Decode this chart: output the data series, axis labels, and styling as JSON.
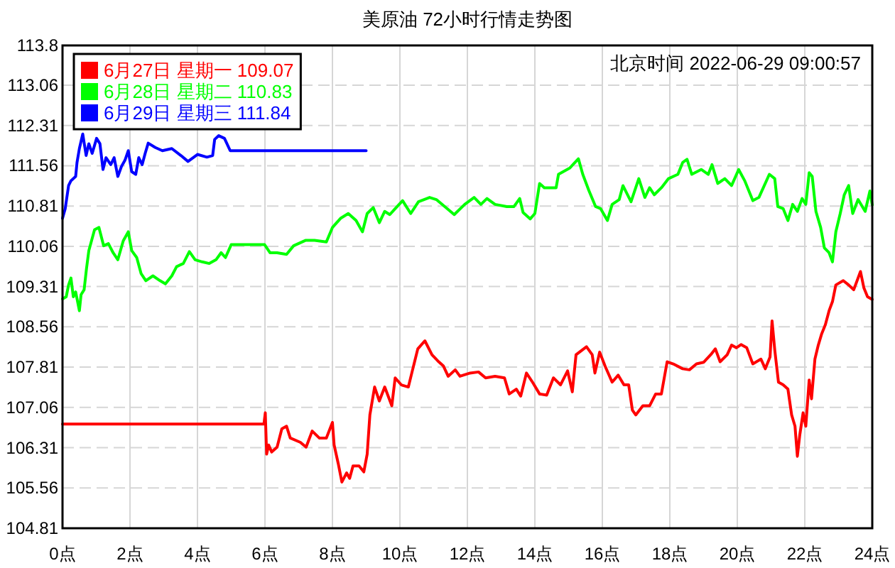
{
  "chart_data": {
    "type": "line",
    "title": "美原油 72小时行情走势图",
    "annotations": [
      "北京时间 2022-06-29 09:00:57"
    ],
    "xlim": [
      0,
      24
    ],
    "xticks": [
      {
        "value": 0,
        "label": "0点"
      },
      {
        "value": 2,
        "label": "2点"
      },
      {
        "value": 4,
        "label": "4点"
      },
      {
        "value": 6,
        "label": "6点"
      },
      {
        "value": 8,
        "label": "8点"
      },
      {
        "value": 10,
        "label": "10点"
      },
      {
        "value": 12,
        "label": "12点"
      },
      {
        "value": 14,
        "label": "14点"
      },
      {
        "value": 16,
        "label": "16点"
      },
      {
        "value": 18,
        "label": "18点"
      },
      {
        "value": 20,
        "label": "20点"
      },
      {
        "value": 22,
        "label": "22点"
      },
      {
        "value": 24,
        "label": "24点"
      }
    ],
    "ylim": [
      104.81,
      113.8
    ],
    "yticks": [
      104.81,
      105.56,
      106.31,
      107.06,
      107.81,
      108.56,
      109.31,
      110.06,
      110.81,
      111.56,
      112.31,
      113.06,
      113.8
    ],
    "grid": true,
    "legend": "top left",
    "line_style": "solid",
    "series": [
      {
        "name": "6月27日 星期一 109.07",
        "color": "#ff0000",
        "x": [
          0,
          5.97,
          6.01,
          6.05,
          6.11,
          6.2,
          6.36,
          6.5,
          6.64,
          6.75,
          7.05,
          7.22,
          7.4,
          7.61,
          7.82,
          8.0,
          8.05,
          8.17,
          8.28,
          8.42,
          8.51,
          8.61,
          8.79,
          8.93,
          9.03,
          9.11,
          9.25,
          9.39,
          9.55,
          9.76,
          9.86,
          10.04,
          10.25,
          10.36,
          10.53,
          10.74,
          10.95,
          11.15,
          11.29,
          11.43,
          11.64,
          11.78,
          12.08,
          12.33,
          12.54,
          12.82,
          13.1,
          13.24,
          13.45,
          13.58,
          13.75,
          13.93,
          14.14,
          14.35,
          14.55,
          14.76,
          14.97,
          15.11,
          15.22,
          15.53,
          15.7,
          15.78,
          15.92,
          16.08,
          16.29,
          16.47,
          16.64,
          16.78,
          16.89,
          16.99,
          17.2,
          17.4,
          17.58,
          17.75,
          17.92,
          18.1,
          18.38,
          18.58,
          18.79,
          19.0,
          19.21,
          19.35,
          19.49,
          19.7,
          19.83,
          19.97,
          20.11,
          20.28,
          20.46,
          20.7,
          20.83,
          20.97,
          21.03,
          21.11,
          21.22,
          21.36,
          21.5,
          21.61,
          21.71,
          21.78,
          21.85,
          21.95,
          22.03,
          22.13,
          22.2,
          22.3,
          22.4,
          22.5,
          22.61,
          22.72,
          22.82,
          22.92,
          23.14,
          23.3,
          23.45,
          23.65,
          23.75,
          23.86,
          24
        ],
        "values": [
          106.75,
          106.75,
          106.96,
          106.19,
          106.36,
          106.23,
          106.32,
          106.66,
          106.71,
          106.49,
          106.41,
          106.32,
          106.62,
          106.49,
          106.49,
          106.78,
          106.36,
          106.02,
          105.67,
          105.84,
          105.74,
          105.97,
          105.97,
          105.86,
          106.19,
          106.92,
          107.44,
          107.18,
          107.44,
          107.09,
          107.61,
          107.48,
          107.44,
          107.72,
          108.15,
          108.3,
          108.04,
          107.91,
          107.83,
          107.64,
          107.76,
          107.64,
          107.7,
          107.72,
          107.61,
          107.64,
          107.61,
          107.31,
          107.4,
          107.27,
          107.7,
          107.53,
          107.31,
          107.29,
          107.61,
          107.48,
          107.74,
          107.35,
          108.04,
          108.19,
          108.04,
          107.7,
          108.09,
          107.83,
          107.53,
          107.66,
          107.48,
          107.48,
          107.01,
          106.92,
          107.09,
          107.09,
          107.31,
          107.31,
          107.91,
          107.87,
          107.78,
          107.76,
          107.87,
          107.9,
          108.04,
          108.15,
          107.91,
          108.04,
          108.22,
          108.17,
          108.23,
          108.17,
          107.87,
          107.96,
          107.78,
          108.0,
          108.67,
          108.13,
          107.53,
          107.48,
          107.4,
          106.92,
          106.71,
          106.15,
          106.54,
          106.96,
          106.71,
          107.57,
          107.22,
          107.96,
          108.22,
          108.43,
          108.6,
          108.86,
          109.03,
          109.34,
          109.42,
          109.34,
          109.25,
          109.59,
          109.29,
          109.12,
          109.07
        ]
      },
      {
        "name": "6月28日 星期二 110.83",
        "color": "#00ff00",
        "x": [
          0,
          0.11,
          0.18,
          0.25,
          0.32,
          0.39,
          0.5,
          0.55,
          0.64,
          0.71,
          0.78,
          0.95,
          1.08,
          1.22,
          1.36,
          1.5,
          1.64,
          1.8,
          1.95,
          2.05,
          2.2,
          2.33,
          2.47,
          2.68,
          2.89,
          3.05,
          3.24,
          3.38,
          3.58,
          3.76,
          3.93,
          4.14,
          4.35,
          4.55,
          4.7,
          4.83,
          5.0,
          5.99,
          6.15,
          6.36,
          6.64,
          6.85,
          7.2,
          7.47,
          7.82,
          8.0,
          8.24,
          8.47,
          8.7,
          8.89,
          9.03,
          9.21,
          9.39,
          9.55,
          9.7,
          9.86,
          10.08,
          10.32,
          10.55,
          10.88,
          11.08,
          11.33,
          11.61,
          11.92,
          12.2,
          12.4,
          12.58,
          12.82,
          13.17,
          13.38,
          13.55,
          13.65,
          13.86,
          14.0,
          14.14,
          14.28,
          14.63,
          14.7,
          15.04,
          15.29,
          15.42,
          15.6,
          15.8,
          15.95,
          16.15,
          16.29,
          16.5,
          16.61,
          16.85,
          17.08,
          17.26,
          17.4,
          17.54,
          17.75,
          17.96,
          18.24,
          18.38,
          18.51,
          18.65,
          18.93,
          19.14,
          19.25,
          19.42,
          19.63,
          19.83,
          20.04,
          20.22,
          20.46,
          20.64,
          20.95,
          21.11,
          21.2,
          21.36,
          21.5,
          21.64,
          21.78,
          21.92,
          22.03,
          22.13,
          22.22,
          22.33,
          22.47,
          22.58,
          22.72,
          22.82,
          22.92,
          23.05,
          23.17,
          23.3,
          23.42,
          23.58,
          23.79,
          23.93,
          24
        ],
        "values": [
          109.08,
          109.12,
          109.34,
          109.47,
          109.12,
          109.21,
          108.86,
          109.16,
          109.25,
          109.64,
          109.98,
          110.37,
          110.41,
          110.07,
          110.11,
          109.94,
          109.81,
          110.16,
          110.33,
          109.98,
          109.85,
          109.55,
          109.42,
          109.51,
          109.42,
          109.36,
          109.51,
          109.68,
          109.74,
          109.96,
          109.81,
          109.77,
          109.74,
          109.81,
          109.94,
          109.85,
          110.09,
          110.09,
          109.94,
          109.94,
          109.91,
          110.07,
          110.17,
          110.17,
          110.14,
          110.41,
          110.58,
          110.67,
          110.54,
          110.33,
          110.67,
          110.78,
          110.5,
          110.71,
          110.65,
          110.76,
          110.91,
          110.67,
          110.89,
          110.97,
          110.93,
          110.8,
          110.65,
          110.84,
          110.97,
          110.84,
          110.95,
          110.84,
          110.8,
          110.8,
          110.95,
          110.69,
          110.57,
          110.67,
          111.23,
          111.15,
          111.15,
          111.4,
          111.52,
          111.69,
          111.4,
          111.1,
          110.8,
          110.76,
          110.54,
          110.84,
          110.93,
          111.19,
          110.89,
          111.32,
          110.97,
          111.15,
          111.02,
          111.15,
          111.32,
          111.4,
          111.62,
          111.68,
          111.4,
          111.49,
          111.4,
          111.58,
          111.23,
          111.32,
          111.19,
          111.49,
          111.28,
          110.91,
          110.97,
          111.4,
          111.32,
          110.8,
          110.76,
          110.54,
          110.84,
          110.71,
          110.95,
          110.84,
          111.43,
          111.36,
          110.71,
          110.41,
          110.03,
          109.94,
          109.77,
          110.33,
          110.67,
          111.02,
          111.19,
          110.67,
          110.93,
          110.71,
          111.09,
          110.83
        ]
      },
      {
        "name": "6月29日 星期三 111.84",
        "color": "#0000ff",
        "x": [
          0,
          0.08,
          0.18,
          0.25,
          0.39,
          0.43,
          0.5,
          0.6,
          0.7,
          0.78,
          0.88,
          1.01,
          1.11,
          1.2,
          1.29,
          1.43,
          1.53,
          1.64,
          1.75,
          1.85,
          1.95,
          2.05,
          2.17,
          2.26,
          2.36,
          2.45,
          2.54,
          2.75,
          2.96,
          3.24,
          3.51,
          3.72,
          4.0,
          4.28,
          4.45,
          4.51,
          4.63,
          4.8,
          4.97,
          9.0
        ],
        "values": [
          110.58,
          110.76,
          111.19,
          111.28,
          111.36,
          111.62,
          111.88,
          112.15,
          111.75,
          111.97,
          111.79,
          112.07,
          111.97,
          111.49,
          111.71,
          111.58,
          111.71,
          111.36,
          111.55,
          111.66,
          111.84,
          111.45,
          111.4,
          111.71,
          111.58,
          111.79,
          111.98,
          111.9,
          111.84,
          111.88,
          111.75,
          111.64,
          111.77,
          111.72,
          111.75,
          112.05,
          112.12,
          112.07,
          111.84,
          111.84
        ]
      }
    ]
  }
}
